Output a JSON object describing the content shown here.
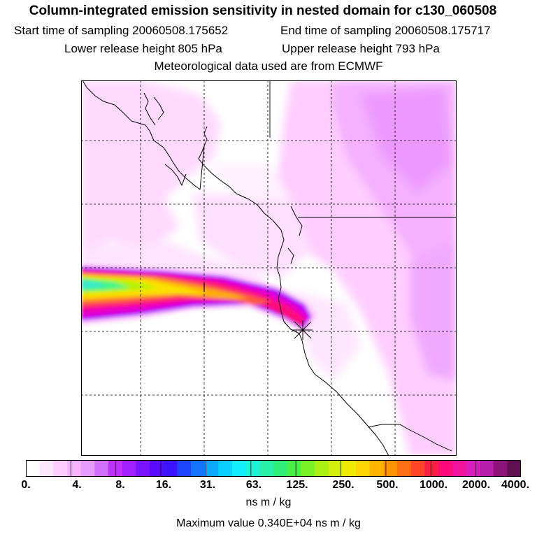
{
  "header": {
    "title": "Column-integrated emission sensitivity in nested domain for c130_060508",
    "start_label": "Start time of sampling 20060508.175652",
    "end_label": "End time of sampling 20060508.175717",
    "lower_label": "Lower release height  805 hPa",
    "upper_label": "Upper release height  793 hPa",
    "met_label": "Meteorological data used are from ECMWF"
  },
  "map": {
    "release_marker": "asterisk-marker",
    "plume_colors": [
      "#39e9d0",
      "#3ef58a",
      "#b6f200",
      "#fbe200",
      "#ffb000",
      "#ff5a3c",
      "#ff0a78",
      "#e800c8",
      "#b200ff",
      "#ffccff"
    ]
  },
  "colorbar": {
    "colors": [
      "#ffffff",
      "#ffe6ff",
      "#ffccff",
      "#f7b3ff",
      "#e59bff",
      "#d070ff",
      "#c030ff",
      "#a020ff",
      "#7a14ff",
      "#5a0aff",
      "#3a14ff",
      "#1e46ff",
      "#1474ff",
      "#0aa8ff",
      "#0ad0ff",
      "#14ecff",
      "#1ef2d8",
      "#28f0a8",
      "#32ee78",
      "#46f046",
      "#7af028",
      "#aaf014",
      "#d2f00a",
      "#f0ea00",
      "#ffd400",
      "#ffb400",
      "#ff9400",
      "#ff7014",
      "#ff4628",
      "#ff1e46",
      "#ff0a78",
      "#f0149c",
      "#d81ebe",
      "#b41eaa",
      "#8c1478",
      "#601050"
    ],
    "ticks": [
      "0.",
      "4.",
      "8.",
      "16.",
      "31.",
      "63.",
      "125.",
      "250.",
      "500.",
      "1000.",
      "2000.",
      "4000."
    ]
  },
  "footer": {
    "units": "ns m / kg",
    "max_value": "Maximum value  0.340E+04 ns m / kg"
  }
}
